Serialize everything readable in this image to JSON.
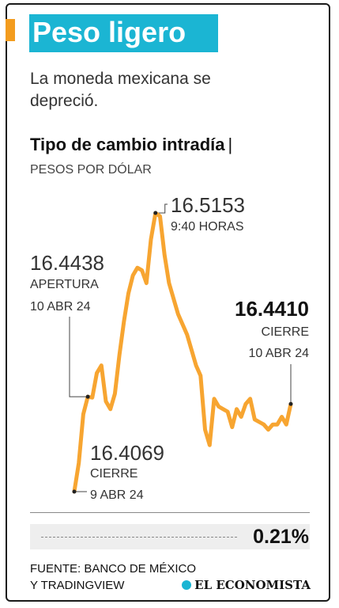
{
  "header": {
    "title": "Peso ligero",
    "subtitle": "La moneda mexicana se depreció."
  },
  "chart_title": "Tipo de cambio intradía",
  "chart_title_sep": "|",
  "units": "PESOS POR DÓLAR",
  "annotations": {
    "open": {
      "value": "16.4438",
      "line1": "APERTURA",
      "line2": "10 ABR 24"
    },
    "peak": {
      "value": "16.5153",
      "line1": "9:40 HORAS"
    },
    "close": {
      "value": "16.4410",
      "line1": "CIERRE",
      "line2": "10 ABR 24"
    },
    "prev_close": {
      "value": "16.4069",
      "line1": "CIERRE",
      "line2": "9 ABR 24"
    }
  },
  "change": "0.21%",
  "source": {
    "line1": "FUENTE: BANCO DE MÉXICO",
    "line2": "Y TRADINGVIEW"
  },
  "logo": "EL ECONOMISTA",
  "colors": {
    "accent": "#f39c1e",
    "title_bg": "#1bb5d3",
    "line": "#f7a531"
  },
  "chart_data": {
    "type": "line",
    "ylabel": "PESOS POR DÓLAR",
    "ylim": [
      16.4069,
      16.5153
    ],
    "series": [
      {
        "values": [
          16.4069,
          16.418,
          16.437,
          16.4438,
          16.4435,
          16.453,
          16.456,
          16.442,
          16.439,
          16.445,
          16.46,
          16.473,
          16.484,
          16.491,
          16.494,
          16.493,
          16.488,
          16.505,
          16.5153,
          16.514,
          16.499,
          16.488,
          16.482,
          16.476,
          16.472,
          16.468,
          16.462,
          16.456,
          16.452,
          16.431,
          16.425,
          16.443,
          16.44,
          16.439,
          16.438,
          16.432,
          16.439,
          16.436,
          16.441,
          16.443,
          16.435,
          16.434,
          16.433,
          16.431,
          16.433,
          16.433,
          16.436,
          16.433,
          16.441
        ]
      }
    ]
  }
}
